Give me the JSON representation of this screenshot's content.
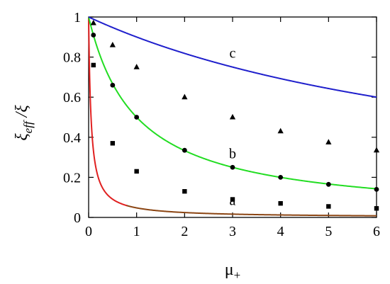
{
  "chart_data": {
    "type": "line",
    "xlabel": "μ+",
    "ylabel": "ξeff /ξ",
    "xlim": [
      0,
      6
    ],
    "ylim": [
      0,
      1
    ],
    "xticks": [
      "0",
      "1",
      "2",
      "3",
      "4",
      "5",
      "6"
    ],
    "yticks": [
      "0",
      "0.2",
      "0.4",
      "0.6",
      "0.8",
      "1"
    ],
    "grid": false,
    "series": [
      {
        "name": "a",
        "color": "#e02020",
        "color_tail": "#8b4513",
        "marker": "square",
        "curve_coefficient": 20,
        "x": [
          0.1,
          0.5,
          1,
          2,
          3,
          4,
          5,
          6
        ],
        "y": [
          0.76,
          0.37,
          0.23,
          0.13,
          0.09,
          0.07,
          0.055,
          0.045
        ]
      },
      {
        "name": "b",
        "color": "#22dd22",
        "marker": "circle",
        "curve_coefficient": 1,
        "x": [
          0.1,
          0.5,
          1,
          2,
          3,
          4,
          5,
          6
        ],
        "y": [
          0.91,
          0.66,
          0.5,
          0.335,
          0.25,
          0.2,
          0.165,
          0.14
        ]
      },
      {
        "name": "c",
        "color": "#1f1fcc",
        "marker": "triangle",
        "curve_coefficient": 0.111,
        "x": [
          0.1,
          0.5,
          1,
          2,
          3,
          4,
          5,
          6
        ],
        "y": [
          0.97,
          0.86,
          0.75,
          0.6,
          0.5,
          0.43,
          0.375,
          0.335
        ]
      }
    ]
  }
}
